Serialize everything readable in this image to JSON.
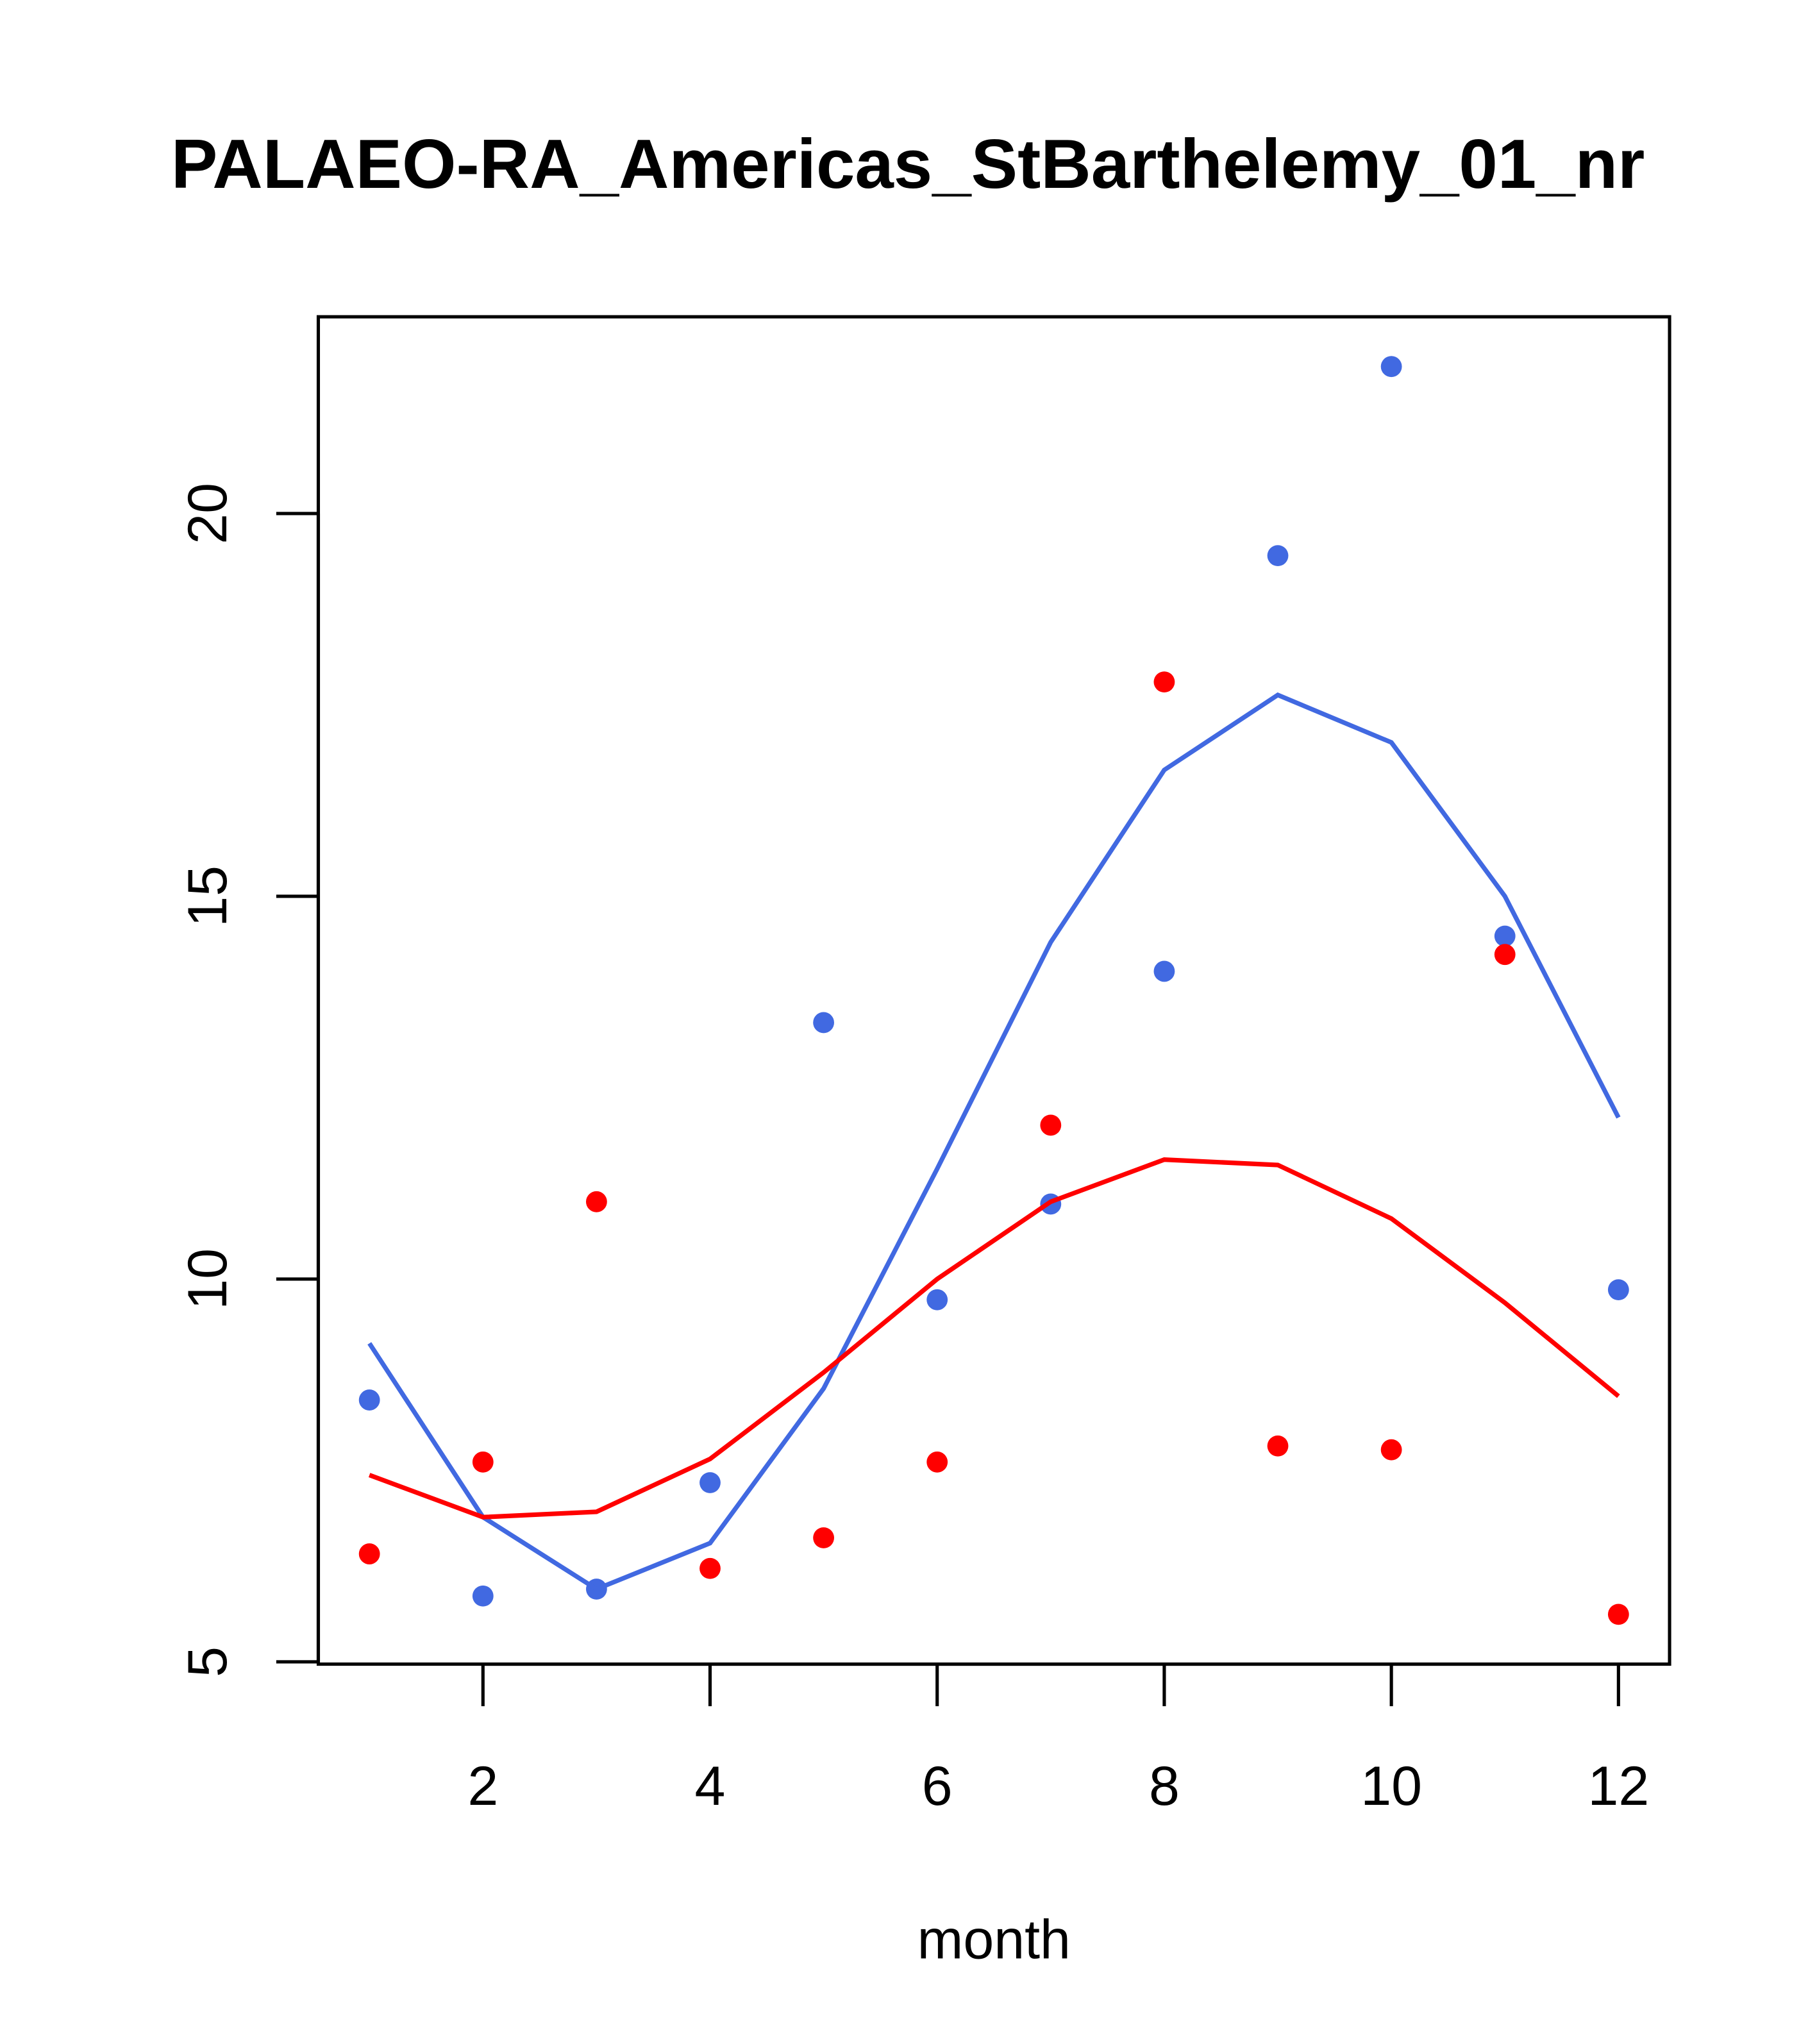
{
  "chart_data": {
    "type": "scatter",
    "title": "PALAEO-RA_Americas_StBarthelemy_01_nr",
    "xlabel": "month",
    "ylabel": "",
    "xlim": [
      0.55,
      12.45
    ],
    "ylim": [
      4.97,
      22.57
    ],
    "x": [
      1,
      2,
      3,
      4,
      5,
      6,
      7,
      8,
      9,
      10,
      11,
      12
    ],
    "xticks": [
      "2",
      "4",
      "6",
      "8",
      "10",
      "12"
    ],
    "xtick_values": [
      2,
      4,
      6,
      8,
      10,
      12
    ],
    "yticks": [
      "5",
      "10",
      "15",
      "20"
    ],
    "ytick_values": [
      5,
      10,
      15,
      20
    ],
    "series": [
      {
        "name": "blue points",
        "kind": "points",
        "color": "#4169E1",
        "values": [
          8.42,
          5.86,
          5.95,
          7.34,
          13.35,
          9.73,
          10.98,
          14.02,
          19.45,
          21.92,
          14.48,
          9.86
        ]
      },
      {
        "name": "red points",
        "kind": "points",
        "color": "#FF0000",
        "values": [
          6.41,
          7.61,
          11.01,
          6.22,
          6.62,
          7.61,
          12.01,
          17.8,
          7.82,
          7.77,
          14.24,
          5.62
        ]
      },
      {
        "name": "blue line",
        "kind": "line",
        "color": "#4169E1",
        "values": [
          9.16,
          6.89,
          5.95,
          6.55,
          8.57,
          11.44,
          14.4,
          16.65,
          17.63,
          17.01,
          15.0,
          12.11
        ]
      },
      {
        "name": "red line",
        "kind": "line",
        "color": "#FF0000",
        "values": [
          7.44,
          6.89,
          6.96,
          7.65,
          8.78,
          10.0,
          11.01,
          11.56,
          11.49,
          10.79,
          9.69,
          8.47
        ]
      }
    ]
  }
}
